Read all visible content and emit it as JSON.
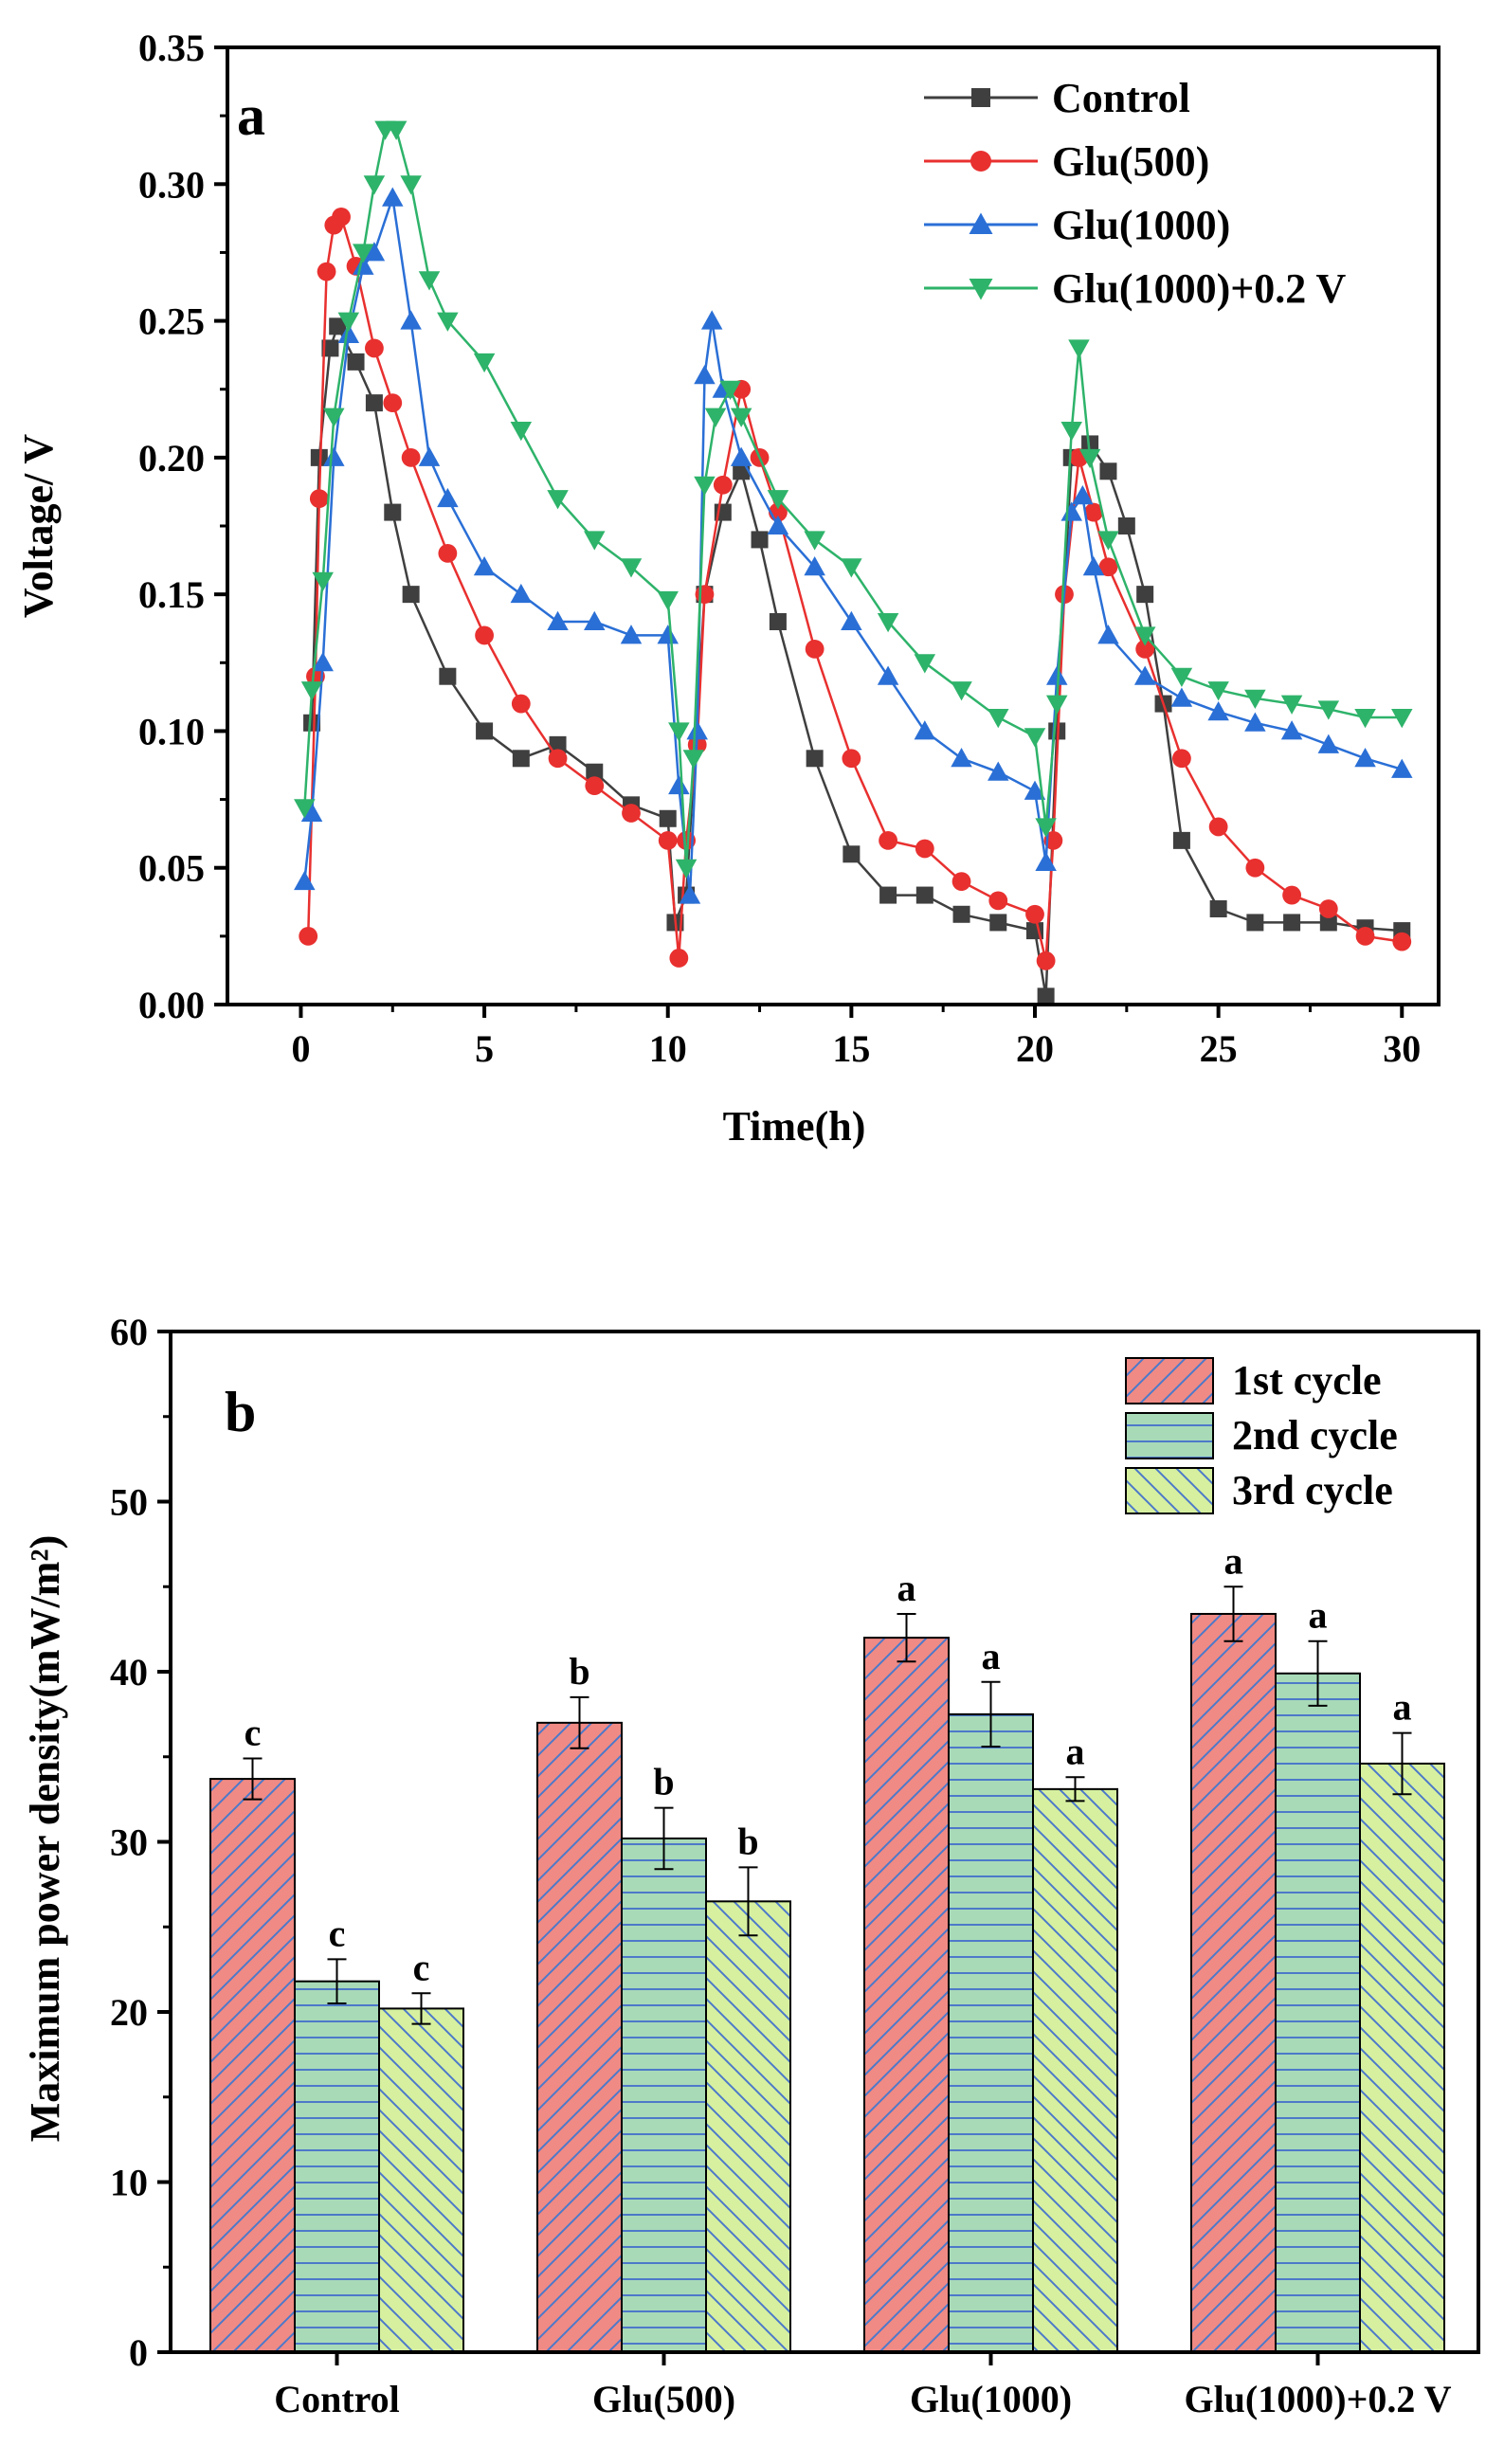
{
  "figure": {
    "chart_data": [
      {
        "type": "line",
        "panel_label": "a",
        "title": "",
        "xlabel": "Time(h)",
        "ylabel": "Voltage/ V",
        "xlim": [
          -2,
          31
        ],
        "ylim": [
          0,
          0.35
        ],
        "xticks": [
          0,
          5,
          10,
          15,
          20,
          25,
          30
        ],
        "yticks": [
          0.0,
          0.05,
          0.1,
          0.15,
          0.2,
          0.25,
          0.3,
          0.35
        ],
        "xtick_labels": [
          "0",
          "5",
          "10",
          "15",
          "20",
          "25",
          "30"
        ],
        "ytick_labels": [
          "0.00",
          "0.05",
          "0.10",
          "0.15",
          "0.20",
          "0.25",
          "0.30",
          "0.35"
        ],
        "legend_position": "top-right",
        "series": [
          {
            "name": "Control",
            "marker": "square",
            "color": "#3f3f3f",
            "points": [
              [
                0.3,
                0.103
              ],
              [
                0.5,
                0.2
              ],
              [
                0.8,
                0.24
              ],
              [
                1,
                0.248
              ],
              [
                1.5,
                0.235
              ],
              [
                2,
                0.22
              ],
              [
                2.5,
                0.18
              ],
              [
                3,
                0.15
              ],
              [
                4,
                0.12
              ],
              [
                5,
                0.1
              ],
              [
                6,
                0.09
              ],
              [
                7,
                0.095
              ],
              [
                8,
                0.085
              ],
              [
                9,
                0.073
              ],
              [
                10,
                0.068
              ],
              [
                10.2,
                0.03
              ],
              [
                10.5,
                0.04
              ],
              [
                11,
                0.15
              ],
              [
                11.5,
                0.18
              ],
              [
                12,
                0.195
              ],
              [
                12.5,
                0.17
              ],
              [
                13,
                0.14
              ],
              [
                14,
                0.09
              ],
              [
                15,
                0.055
              ],
              [
                16,
                0.04
              ],
              [
                17,
                0.04
              ],
              [
                18,
                0.033
              ],
              [
                19,
                0.03
              ],
              [
                20,
                0.027
              ],
              [
                20.3,
                0.003
              ],
              [
                20.6,
                0.1
              ],
              [
                21,
                0.2
              ],
              [
                21.5,
                0.205
              ],
              [
                22,
                0.195
              ],
              [
                22.5,
                0.175
              ],
              [
                23,
                0.15
              ],
              [
                23.5,
                0.11
              ],
              [
                24,
                0.06
              ],
              [
                25,
                0.035
              ],
              [
                26,
                0.03
              ],
              [
                27,
                0.03
              ],
              [
                28,
                0.03
              ],
              [
                29,
                0.028
              ],
              [
                30,
                0.027
              ]
            ]
          },
          {
            "name": "Glu(500)",
            "marker": "circle",
            "color": "#e8302f",
            "points": [
              [
                0.2,
                0.025
              ],
              [
                0.4,
                0.12
              ],
              [
                0.5,
                0.185
              ],
              [
                0.7,
                0.268
              ],
              [
                0.9,
                0.285
              ],
              [
                1.1,
                0.288
              ],
              [
                1.5,
                0.27
              ],
              [
                2,
                0.24
              ],
              [
                2.5,
                0.22
              ],
              [
                3,
                0.2
              ],
              [
                4,
                0.165
              ],
              [
                5,
                0.135
              ],
              [
                6,
                0.11
              ],
              [
                7,
                0.09
              ],
              [
                8,
                0.08
              ],
              [
                9,
                0.07
              ],
              [
                10,
                0.06
              ],
              [
                10.3,
                0.017
              ],
              [
                10.5,
                0.06
              ],
              [
                10.8,
                0.095
              ],
              [
                11,
                0.15
              ],
              [
                11.5,
                0.19
              ],
              [
                12,
                0.225
              ],
              [
                12.5,
                0.2
              ],
              [
                13,
                0.18
              ],
              [
                14,
                0.13
              ],
              [
                15,
                0.09
              ],
              [
                16,
                0.06
              ],
              [
                17,
                0.057
              ],
              [
                18,
                0.045
              ],
              [
                19,
                0.038
              ],
              [
                20,
                0.033
              ],
              [
                20.3,
                0.016
              ],
              [
                20.5,
                0.06
              ],
              [
                20.8,
                0.15
              ],
              [
                21.2,
                0.2
              ],
              [
                21.6,
                0.18
              ],
              [
                22,
                0.16
              ],
              [
                23,
                0.13
              ],
              [
                24,
                0.09
              ],
              [
                25,
                0.065
              ],
              [
                26,
                0.05
              ],
              [
                27,
                0.04
              ],
              [
                28,
                0.035
              ],
              [
                29,
                0.025
              ],
              [
                30,
                0.023
              ]
            ]
          },
          {
            "name": "Glu(1000)",
            "marker": "triangle-up",
            "color": "#2a6fd6",
            "points": [
              [
                0.1,
                0.045
              ],
              [
                0.3,
                0.07
              ],
              [
                0.6,
                0.125
              ],
              [
                0.9,
                0.2
              ],
              [
                1.3,
                0.245
              ],
              [
                1.7,
                0.27
              ],
              [
                2,
                0.275
              ],
              [
                2.5,
                0.295
              ],
              [
                3,
                0.25
              ],
              [
                3.5,
                0.2
              ],
              [
                4,
                0.185
              ],
              [
                5,
                0.16
              ],
              [
                6,
                0.15
              ],
              [
                7,
                0.14
              ],
              [
                8,
                0.14
              ],
              [
                9,
                0.135
              ],
              [
                10,
                0.135
              ],
              [
                10.3,
                0.08
              ],
              [
                10.6,
                0.04
              ],
              [
                10.8,
                0.1
              ],
              [
                11,
                0.23
              ],
              [
                11.2,
                0.25
              ],
              [
                11.5,
                0.225
              ],
              [
                12,
                0.2
              ],
              [
                13,
                0.175
              ],
              [
                14,
                0.16
              ],
              [
                15,
                0.14
              ],
              [
                16,
                0.12
              ],
              [
                17,
                0.1
              ],
              [
                18,
                0.09
              ],
              [
                19,
                0.085
              ],
              [
                20,
                0.078
              ],
              [
                20.3,
                0.052
              ],
              [
                20.6,
                0.12
              ],
              [
                21,
                0.18
              ],
              [
                21.3,
                0.186
              ],
              [
                21.6,
                0.16
              ],
              [
                22,
                0.135
              ],
              [
                23,
                0.12
              ],
              [
                24,
                0.112
              ],
              [
                25,
                0.107
              ],
              [
                26,
                0.103
              ],
              [
                27,
                0.1
              ],
              [
                28,
                0.095
              ],
              [
                29,
                0.09
              ],
              [
                30,
                0.086
              ]
            ]
          },
          {
            "name": "Glu(1000)+0.2 V",
            "marker": "triangle-down",
            "color": "#2eb36a",
            "points": [
              [
                0.1,
                0.072
              ],
              [
                0.3,
                0.115
              ],
              [
                0.6,
                0.155
              ],
              [
                0.9,
                0.215
              ],
              [
                1.3,
                0.25
              ],
              [
                1.7,
                0.275
              ],
              [
                2,
                0.3
              ],
              [
                2.3,
                0.32
              ],
              [
                2.6,
                0.32
              ],
              [
                3,
                0.3
              ],
              [
                3.5,
                0.265
              ],
              [
                4,
                0.25
              ],
              [
                5,
                0.235
              ],
              [
                6,
                0.21
              ],
              [
                7,
                0.185
              ],
              [
                8,
                0.17
              ],
              [
                9,
                0.16
              ],
              [
                10,
                0.148
              ],
              [
                10.3,
                0.1
              ],
              [
                10.5,
                0.05
              ],
              [
                10.7,
                0.09
              ],
              [
                11,
                0.19
              ],
              [
                11.3,
                0.215
              ],
              [
                11.7,
                0.225
              ],
              [
                12,
                0.215
              ],
              [
                13,
                0.185
              ],
              [
                14,
                0.17
              ],
              [
                15,
                0.16
              ],
              [
                16,
                0.14
              ],
              [
                17,
                0.125
              ],
              [
                18,
                0.115
              ],
              [
                19,
                0.105
              ],
              [
                20,
                0.098
              ],
              [
                20.3,
                0.065
              ],
              [
                20.6,
                0.11
              ],
              [
                21,
                0.21
              ],
              [
                21.2,
                0.24
              ],
              [
                21.5,
                0.2
              ],
              [
                22,
                0.17
              ],
              [
                23,
                0.135
              ],
              [
                24,
                0.12
              ],
              [
                25,
                0.115
              ],
              [
                26,
                0.112
              ],
              [
                27,
                0.11
              ],
              [
                28,
                0.108
              ],
              [
                29,
                0.105
              ],
              [
                30,
                0.105
              ]
            ]
          }
        ]
      },
      {
        "type": "bar",
        "panel_label": "b",
        "title": "",
        "xlabel": "",
        "ylabel": "Maximum power density(mW/m²)",
        "ylim": [
          0,
          60
        ],
        "yticks": [
          0,
          10,
          20,
          30,
          40,
          50,
          60
        ],
        "ytick_labels": [
          "0",
          "10",
          "20",
          "30",
          "40",
          "50",
          "60"
        ],
        "categories": [
          "Control",
          "Glu(500)",
          "Glu(1000)",
          "Glu(1000)+0.2 V"
        ],
        "legend_position": "top-right",
        "series": [
          {
            "name": "1st cycle",
            "color": "#f08a84",
            "hatch": "diagonal",
            "values": [
              33.7,
              37.0,
              42.0,
              43.4
            ],
            "errors": [
              1.2,
              1.5,
              1.4,
              1.6
            ],
            "significance": [
              "c",
              "b",
              "a",
              "a"
            ]
          },
          {
            "name": "2nd cycle",
            "color": "#a8dab8",
            "hatch": "horizontal",
            "values": [
              21.8,
              30.2,
              37.5,
              39.9
            ],
            "errors": [
              1.3,
              1.8,
              1.9,
              1.9
            ],
            "significance": [
              "c",
              "b",
              "a",
              "a"
            ]
          },
          {
            "name": "3rd cycle",
            "color": "#d6f0a0",
            "hatch": "back-diagonal",
            "values": [
              20.2,
              26.5,
              33.1,
              34.6
            ],
            "errors": [
              0.9,
              2.0,
              0.7,
              1.8
            ],
            "significance": [
              "c",
              "b",
              "a",
              "a"
            ]
          }
        ]
      }
    ]
  }
}
